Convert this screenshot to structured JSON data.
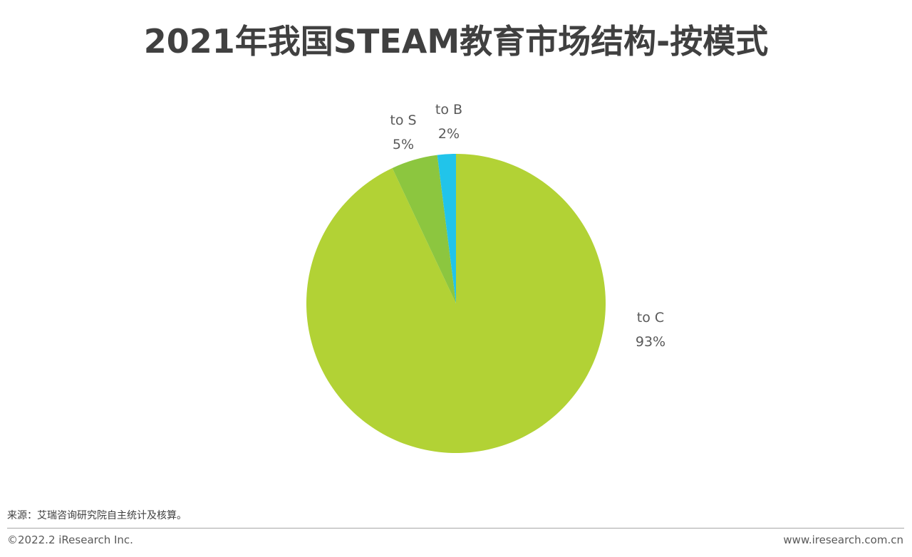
{
  "page": {
    "title": "2021年我国STEAM教育市场结构-按模式",
    "source": "来源：艾瑞咨询研究院自主统计及核算。",
    "copyright": "©2022.2 iResearch Inc.",
    "website": "www.iresearch.com.cn"
  },
  "chart_data": {
    "type": "pie",
    "title": "2021年我国STEAM教育市场结构-按模式",
    "start_angle": "12 o'clock",
    "direction": "clockwise",
    "slices": [
      {
        "label": "to C",
        "value": 93,
        "value_label": "93%",
        "color": "#b2d235"
      },
      {
        "label": "to S",
        "value": 5,
        "value_label": "5%",
        "color": "#8cc63f"
      },
      {
        "label": "to B",
        "value": 2,
        "value_label": "2%",
        "color": "#21c4ea"
      }
    ]
  }
}
